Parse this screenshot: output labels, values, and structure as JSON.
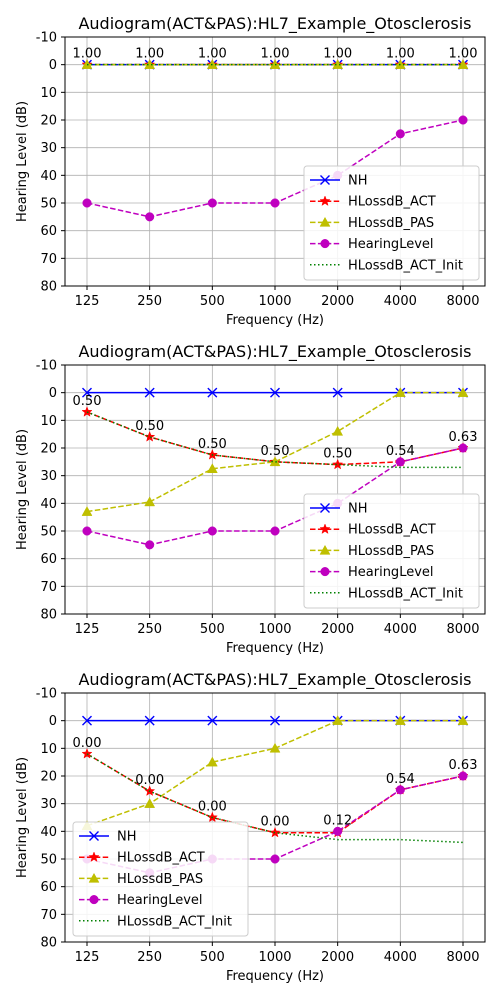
{
  "chart_data": [
    {
      "type": "line",
      "title": "Audiogram(ACT&PAS):HL7_Example_Otosclerosis",
      "xlabel": "Frequency (Hz)",
      "ylabel": "Hearing Level (dB)",
      "categories": [
        "125",
        "250",
        "500",
        "1000",
        "2000",
        "4000",
        "8000"
      ],
      "y_ticks": [
        "-10",
        "0",
        "10",
        "20",
        "30",
        "40",
        "50",
        "60",
        "70",
        "80"
      ],
      "ylim": [
        -10,
        80
      ],
      "y_inverted": true,
      "grid": true,
      "legend_position": "lower right",
      "series": [
        {
          "name": "NH",
          "values": [
            0,
            0,
            0,
            0,
            0,
            0,
            0
          ],
          "color": "#0000ff",
          "marker": "x",
          "dash": "solid"
        },
        {
          "name": "HLossdB_ACT",
          "values": [
            0,
            0,
            0,
            0,
            0,
            0,
            0
          ],
          "color": "#ff0000",
          "marker": "star",
          "dash": "dashed"
        },
        {
          "name": "HLossdB_PAS",
          "values": [
            0,
            0,
            0,
            0,
            0,
            0,
            0
          ],
          "color": "#bfbf00",
          "marker": "triangle",
          "dash": "dashed"
        },
        {
          "name": "HearingLevel",
          "values": [
            50,
            55,
            50,
            50,
            40,
            25,
            20
          ],
          "color": "#bf00bf",
          "marker": "circle",
          "dash": "dashed"
        },
        {
          "name": "HLossdB_ACT_Init",
          "values": [
            0,
            0,
            0,
            0,
            0,
            0,
            0
          ],
          "color": "#008000",
          "marker": "none",
          "dash": "dotted"
        }
      ],
      "annotations": [
        "1.00",
        "1.00",
        "1.00",
        "1.00",
        "1.00",
        "1.00",
        "1.00"
      ],
      "annotation_y": [
        0,
        0,
        0,
        0,
        0,
        0,
        0
      ]
    },
    {
      "type": "line",
      "title": "Audiogram(ACT&PAS):HL7_Example_Otosclerosis",
      "xlabel": "Frequency (Hz)",
      "ylabel": "Hearing Level (dB)",
      "categories": [
        "125",
        "250",
        "500",
        "1000",
        "2000",
        "4000",
        "8000"
      ],
      "y_ticks": [
        "-10",
        "0",
        "10",
        "20",
        "30",
        "40",
        "50",
        "60",
        "70",
        "80"
      ],
      "ylim": [
        -10,
        80
      ],
      "y_inverted": true,
      "grid": true,
      "legend_position": "lower right",
      "series": [
        {
          "name": "NH",
          "values": [
            0,
            0,
            0,
            0,
            0,
            0,
            0
          ],
          "color": "#0000ff",
          "marker": "x",
          "dash": "solid"
        },
        {
          "name": "HLossdB_ACT",
          "values": [
            7,
            16,
            22.5,
            25,
            26,
            25,
            20
          ],
          "color": "#ff0000",
          "marker": "star",
          "dash": "dashed"
        },
        {
          "name": "HLossdB_PAS",
          "values": [
            43,
            39.5,
            27.5,
            25,
            14,
            0,
            0
          ],
          "color": "#bfbf00",
          "marker": "triangle",
          "dash": "dashed"
        },
        {
          "name": "HearingLevel",
          "values": [
            50,
            55,
            50,
            50,
            40,
            25,
            20
          ],
          "color": "#bf00bf",
          "marker": "circle",
          "dash": "dashed"
        },
        {
          "name": "HLossdB_ACT_Init",
          "values": [
            7,
            16,
            22.5,
            25,
            26,
            27,
            27
          ],
          "color": "#008000",
          "marker": "none",
          "dash": "dotted"
        }
      ],
      "annotations": [
        "0.50",
        "0.50",
        "0.50",
        "0.50",
        "0.50",
        "0.54",
        "0.63"
      ],
      "annotation_y": [
        7,
        16,
        22.5,
        25,
        26,
        25,
        20
      ]
    },
    {
      "type": "line",
      "title": "Audiogram(ACT&PAS):HL7_Example_Otosclerosis",
      "xlabel": "Frequency (Hz)",
      "ylabel": "Hearing Level (dB)",
      "categories": [
        "125",
        "250",
        "500",
        "1000",
        "2000",
        "4000",
        "8000"
      ],
      "y_ticks": [
        "-10",
        "0",
        "10",
        "20",
        "30",
        "40",
        "50",
        "60",
        "70",
        "80"
      ],
      "ylim": [
        -10,
        80
      ],
      "y_inverted": true,
      "grid": true,
      "legend_position": "lower left",
      "series": [
        {
          "name": "NH",
          "values": [
            0,
            0,
            0,
            0,
            0,
            0,
            0
          ],
          "color": "#0000ff",
          "marker": "x",
          "dash": "solid"
        },
        {
          "name": "HLossdB_ACT",
          "values": [
            12,
            25.5,
            35,
            40.5,
            40.5,
            25,
            20
          ],
          "color": "#ff0000",
          "marker": "star",
          "dash": "dashed"
        },
        {
          "name": "HLossdB_PAS",
          "values": [
            38,
            30,
            15,
            10,
            0,
            0,
            0
          ],
          "color": "#bfbf00",
          "marker": "triangle",
          "dash": "dashed"
        },
        {
          "name": "HearingLevel",
          "values": [
            50,
            55,
            50,
            50,
            40,
            25,
            20
          ],
          "color": "#bf00bf",
          "marker": "circle",
          "dash": "dashed"
        },
        {
          "name": "HLossdB_ACT_Init",
          "values": [
            12,
            25.5,
            35,
            40.5,
            43,
            43,
            44
          ],
          "color": "#008000",
          "marker": "none",
          "dash": "dotted"
        }
      ],
      "annotations": [
        "0.00",
        "0.00",
        "0.00",
        "0.00",
        "0.12",
        "0.54",
        "0.63"
      ],
      "annotation_y": [
        12,
        25.5,
        35,
        40.5,
        40,
        25,
        20
      ]
    }
  ]
}
